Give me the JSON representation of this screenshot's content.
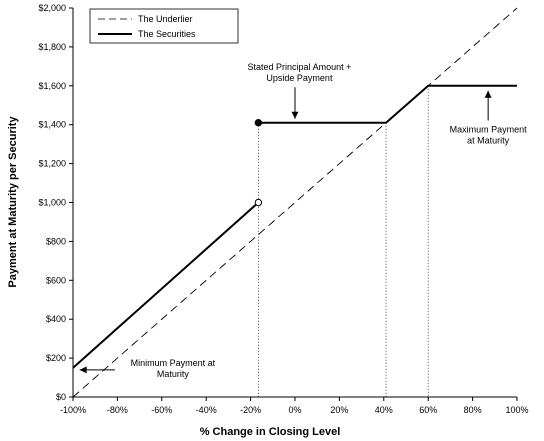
{
  "chart_data": {
    "type": "line",
    "xlabel": "% Change in Closing Level",
    "ylabel": "Payment at Maturity per Security",
    "xlim": [
      -100,
      100
    ],
    "ylim": [
      0,
      2000
    ],
    "x_ticks": [
      -100,
      -80,
      -60,
      -40,
      -20,
      0,
      20,
      40,
      60,
      80,
      100
    ],
    "x_tick_labels": [
      "-100%",
      "-80%",
      "-60%",
      "-40%",
      "-20%",
      "0%",
      "20%",
      "40%",
      "60%",
      "80%",
      "100%"
    ],
    "y_ticks": [
      0,
      200,
      400,
      600,
      800,
      1000,
      1200,
      1400,
      1600,
      1800,
      2000
    ],
    "y_tick_labels": [
      "$0",
      "$200",
      "$400",
      "$600",
      "$800",
      "$1,000",
      "$1,200",
      "$1,400",
      "$1,600",
      "$1,800",
      "$2,000"
    ],
    "grid": false,
    "legend_position": "top-left",
    "series": [
      {
        "name": "The Underlier",
        "style": "dashed",
        "color": "#000000",
        "points": [
          [
            -100,
            0
          ],
          [
            100,
            2000
          ]
        ]
      },
      {
        "name": "The Securities",
        "style": "solid",
        "color": "#000000",
        "segments": [
          [
            [
              -100,
              150
            ],
            [
              -16.5,
              1000
            ]
          ],
          [
            [
              -16.5,
              1410
            ],
            [
              41,
              1410
            ],
            [
              60,
              1600
            ],
            [
              100,
              1600
            ]
          ]
        ],
        "open_marker": [
          -16.5,
          1000
        ],
        "filled_marker": [
          -16.5,
          1410
        ]
      }
    ],
    "reference_lines_x": [
      -16.5,
      41,
      60
    ],
    "annotations": [
      {
        "lines": [
          "Stated Principal Amount +",
          "Upside Payment"
        ],
        "arrow_to": [
          0,
          1410
        ],
        "arrow_dir": "down",
        "text_at": [
          2,
          1680
        ]
      },
      {
        "lines": [
          "Maximum Payment",
          "at Maturity"
        ],
        "arrow_to": [
          87,
          1600
        ],
        "arrow_dir": "up",
        "text_at": [
          87,
          1360
        ]
      },
      {
        "lines": [
          "Minimum Payment at",
          "Maturity"
        ],
        "arrow_to": [
          -97,
          150
        ],
        "arrow_dir": "left",
        "text_at": [
          -55,
          160
        ]
      }
    ]
  }
}
